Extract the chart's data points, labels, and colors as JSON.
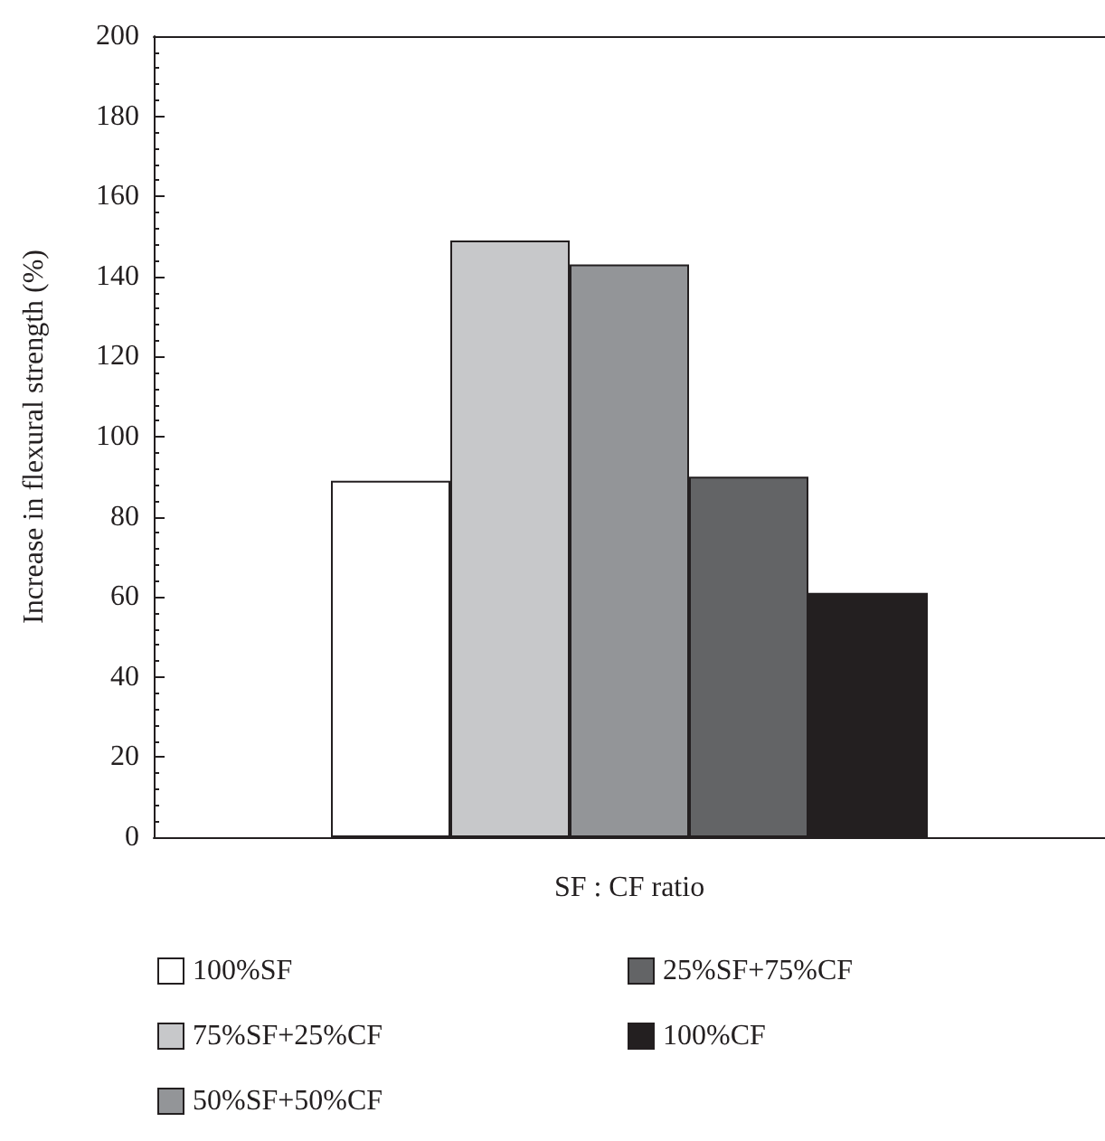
{
  "chart_data": {
    "type": "bar",
    "xlabel": "SF : CF ratio",
    "ylabel": "Increase in flexural strength (%)",
    "categories": [
      null
    ],
    "series": [
      {
        "name": "100%SF",
        "color": "#ffffff",
        "values": [
          89
        ]
      },
      {
        "name": "75%SF+25%CF",
        "color": "#c7c8ca",
        "values": [
          149
        ]
      },
      {
        "name": "50%SF+50%CF",
        "color": "#939598",
        "values": [
          143
        ]
      },
      {
        "name": "25%SF+75%CF",
        "color": "#636466",
        "values": [
          90
        ]
      },
      {
        "name": "100%CF",
        "color": "#231f20",
        "values": [
          61
        ]
      }
    ],
    "ylim": [
      0,
      200
    ],
    "yticks": [
      0,
      20,
      40,
      60,
      80,
      100,
      120,
      140,
      160,
      180,
      200
    ],
    "grid": false,
    "legend": "bottom"
  }
}
